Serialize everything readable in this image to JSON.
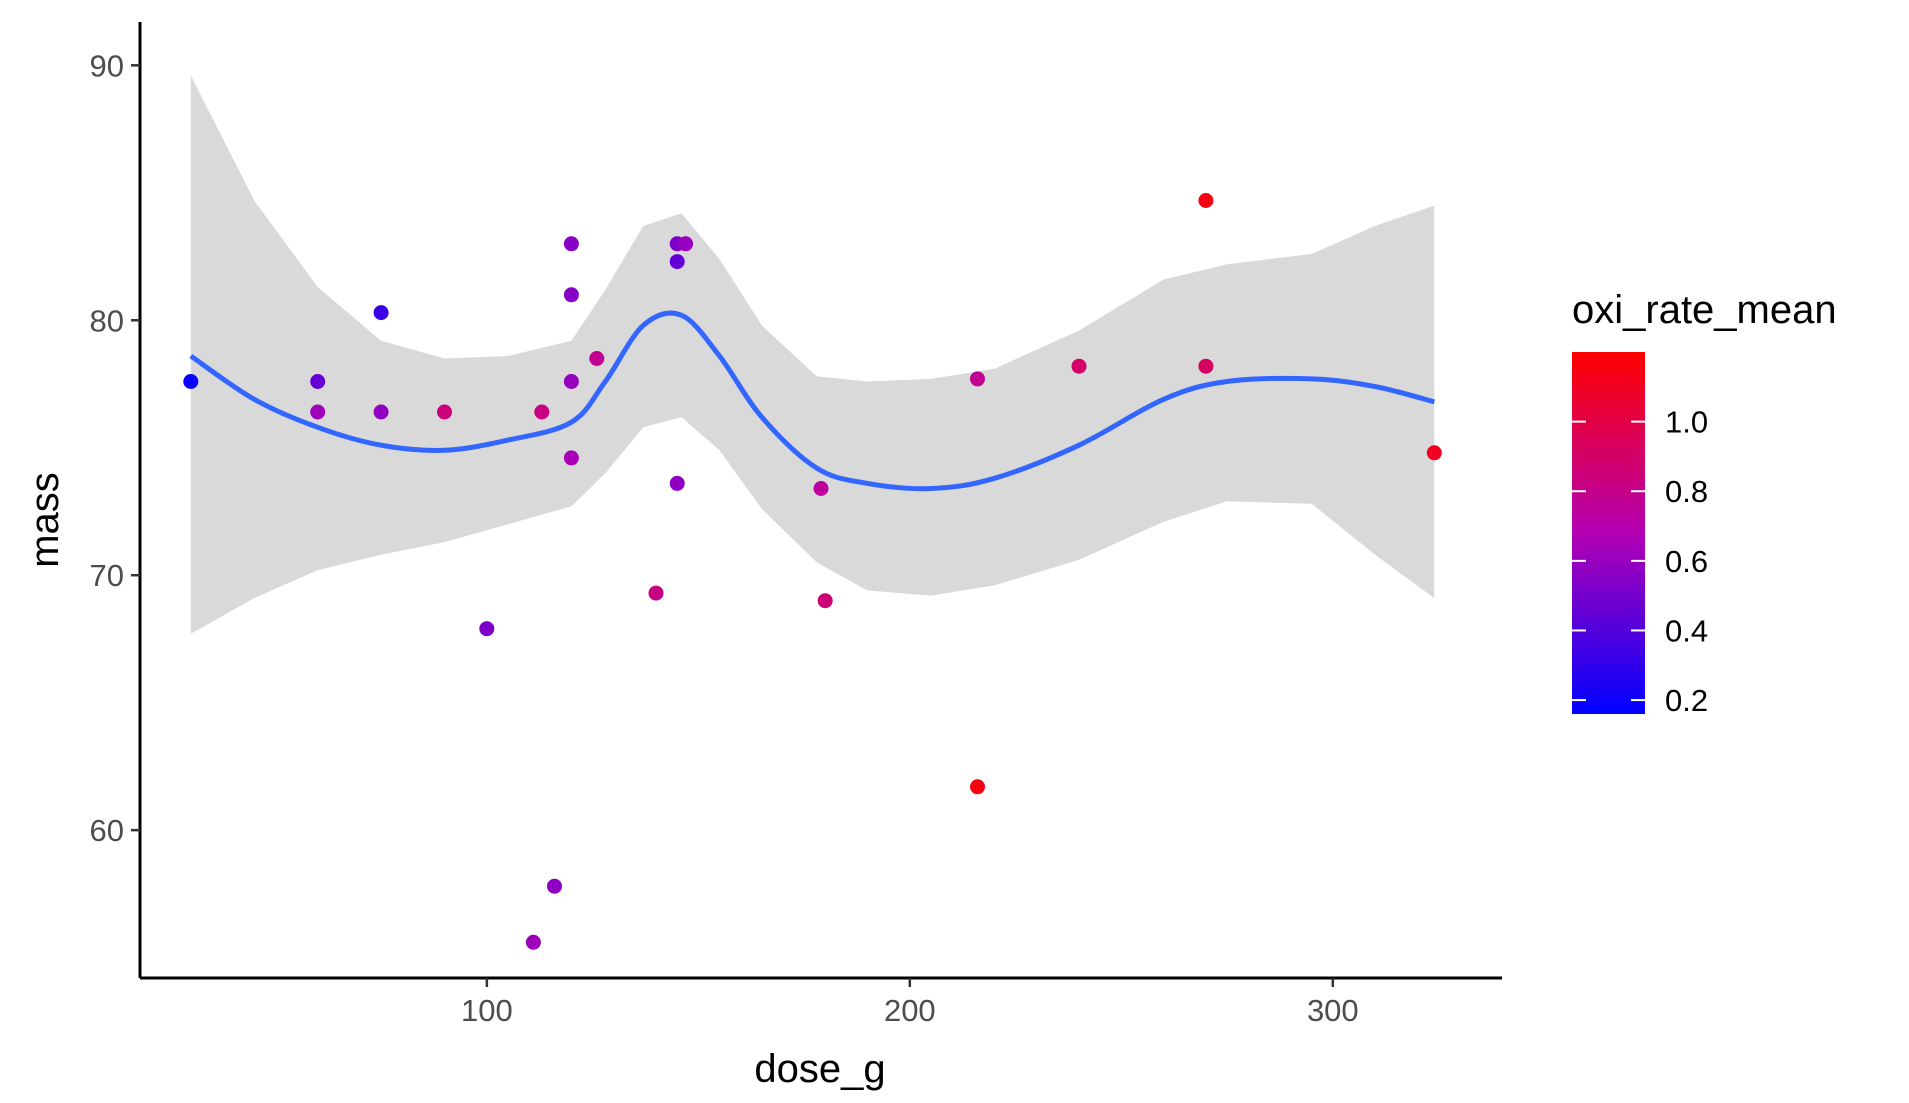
{
  "chart_data": {
    "type": "scatter",
    "xlabel": "dose_g",
    "ylabel": "mass",
    "xlim": [
      18,
      340
    ],
    "ylim": [
      54.2,
      91.7
    ],
    "x_ticks": [
      100,
      200,
      300
    ],
    "y_ticks": [
      60,
      70,
      80,
      90
    ],
    "grid": false,
    "legend": {
      "title": "oxi_rate_mean",
      "placement": "right",
      "type": "colorbar",
      "range": [
        0.16,
        1.2
      ],
      "ticks": [
        0.2,
        0.4,
        0.6,
        0.8,
        1.0
      ],
      "tick_labels": [
        "0.2",
        "0.4",
        "0.6",
        "0.8",
        "1.0"
      ],
      "colors": {
        "low": "#0000FF",
        "high": "#FF0000"
      }
    },
    "points": [
      {
        "x": 30,
        "y": 77.6,
        "c": 0.18
      },
      {
        "x": 60,
        "y": 77.6,
        "c": 0.45
      },
      {
        "x": 60,
        "y": 76.4,
        "c": 0.62
      },
      {
        "x": 75,
        "y": 80.3,
        "c": 0.33
      },
      {
        "x": 75,
        "y": 76.4,
        "c": 0.58
      },
      {
        "x": 90,
        "y": 76.4,
        "c": 0.85
      },
      {
        "x": 100,
        "y": 67.9,
        "c": 0.52
      },
      {
        "x": 111,
        "y": 55.6,
        "c": 0.62
      },
      {
        "x": 113,
        "y": 76.4,
        "c": 0.82
      },
      {
        "x": 116,
        "y": 57.8,
        "c": 0.57
      },
      {
        "x": 120,
        "y": 83.0,
        "c": 0.55
      },
      {
        "x": 120,
        "y": 81.0,
        "c": 0.55
      },
      {
        "x": 120,
        "y": 77.6,
        "c": 0.6
      },
      {
        "x": 120,
        "y": 74.6,
        "c": 0.65
      },
      {
        "x": 126,
        "y": 78.5,
        "c": 0.78
      },
      {
        "x": 140,
        "y": 69.3,
        "c": 0.82
      },
      {
        "x": 145,
        "y": 83.0,
        "c": 0.52
      },
      {
        "x": 145,
        "y": 82.3,
        "c": 0.45
      },
      {
        "x": 145,
        "y": 73.6,
        "c": 0.58
      },
      {
        "x": 147,
        "y": 83.0,
        "c": 0.6
      },
      {
        "x": 179,
        "y": 73.4,
        "c": 0.75
      },
      {
        "x": 180,
        "y": 69.0,
        "c": 0.85
      },
      {
        "x": 216,
        "y": 77.7,
        "c": 0.78
      },
      {
        "x": 216,
        "y": 61.7,
        "c": 1.15
      },
      {
        "x": 240,
        "y": 78.2,
        "c": 0.9
      },
      {
        "x": 270,
        "y": 84.7,
        "c": 1.15
      },
      {
        "x": 270,
        "y": 78.2,
        "c": 0.92
      },
      {
        "x": 324,
        "y": 74.8,
        "c": 1.1
      }
    ],
    "smooth": {
      "x": [
        30,
        45,
        60,
        75,
        90,
        105,
        120,
        128,
        137,
        146,
        155,
        165,
        178,
        190,
        205,
        220,
        240,
        260,
        275,
        295,
        310,
        324
      ],
      "y": [
        78.6,
        76.9,
        75.8,
        75.1,
        74.9,
        75.3,
        76.0,
        77.6,
        79.8,
        80.2,
        78.6,
        76.2,
        74.2,
        73.6,
        73.4,
        73.8,
        75.1,
        76.9,
        77.6,
        77.7,
        77.4,
        76.8
      ],
      "lower": [
        67.7,
        69.1,
        70.2,
        70.8,
        71.3,
        72.0,
        72.7,
        74.0,
        75.8,
        76.2,
        74.9,
        72.6,
        70.5,
        69.4,
        69.2,
        69.6,
        70.6,
        72.1,
        72.9,
        72.8,
        70.8,
        69.1
      ],
      "upper": [
        89.6,
        84.7,
        81.3,
        79.2,
        78.5,
        78.6,
        79.2,
        81.2,
        83.7,
        84.2,
        82.4,
        79.8,
        77.8,
        77.6,
        77.7,
        78.1,
        79.6,
        81.6,
        82.2,
        82.6,
        83.7,
        84.5
      ],
      "line_color": "#3366FF",
      "ribbon_color": "#D9D9D9"
    }
  }
}
